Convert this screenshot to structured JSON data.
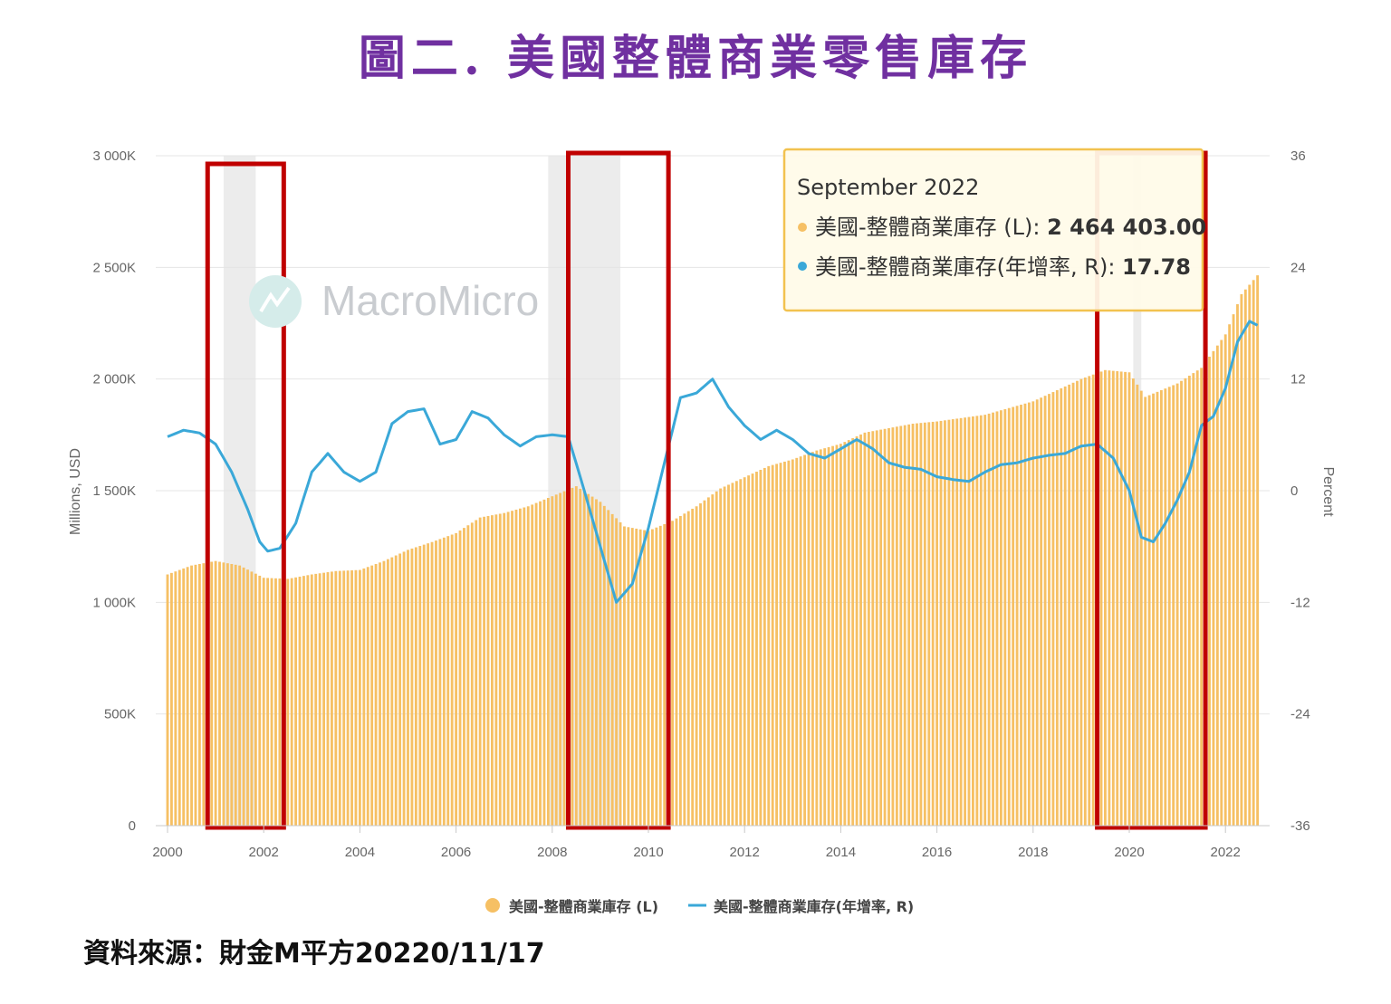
{
  "title": "圖二. 美國整體商業零售庫存",
  "source": "資料來源：財金M平方20220/11/17",
  "watermark": "MacroMicro",
  "colors": {
    "bars": "#f6c064",
    "line": "#3aa8d8",
    "recession": "#ececec",
    "highlight": "#c00000",
    "title": "#7030a0",
    "tooltip_border": "#f2c24f"
  },
  "chart_data": {
    "type": "bar+line",
    "title": "圖二. 美國整體商業零售庫存",
    "ylabel_left": "Millions, USD",
    "ylabel_right": "Percent",
    "y_left_range": [
      0,
      3000000
    ],
    "y_left_ticks": [
      "0",
      "500K",
      "1 000K",
      "1 500K",
      "2 000K",
      "2 500K",
      "3 000K"
    ],
    "y_right_range": [
      -36,
      36
    ],
    "y_right_ticks": [
      "-36",
      "-24",
      "-12",
      "0",
      "12",
      "24",
      "36"
    ],
    "x_range": [
      "2000-01",
      "2022-09"
    ],
    "x_ticks": [
      "2000",
      "2002",
      "2004",
      "2006",
      "2008",
      "2010",
      "2012",
      "2014",
      "2016",
      "2018",
      "2020",
      "2022"
    ],
    "recession_periods": [
      [
        "2001-03",
        "2001-11"
      ],
      [
        "2007-12",
        "2009-06"
      ],
      [
        "2020-02",
        "2020-04"
      ]
    ],
    "highlight_boxes": [
      [
        "2000-11",
        "2002-06"
      ],
      [
        "2008-05",
        "2010-06"
      ],
      [
        "2019-05",
        "2021-08"
      ]
    ],
    "series": [
      {
        "name": "美國-整體商業庫存 (L)",
        "type": "bar",
        "axis": "left",
        "points": [
          [
            "2000-01",
            1125000
          ],
          [
            "2000-07",
            1165000
          ],
          [
            "2001-01",
            1185000
          ],
          [
            "2001-07",
            1165000
          ],
          [
            "2002-01",
            1110000
          ],
          [
            "2002-07",
            1105000
          ],
          [
            "2003-01",
            1125000
          ],
          [
            "2003-07",
            1140000
          ],
          [
            "2004-01",
            1145000
          ],
          [
            "2004-07",
            1185000
          ],
          [
            "2005-01",
            1235000
          ],
          [
            "2005-07",
            1270000
          ],
          [
            "2006-01",
            1310000
          ],
          [
            "2006-07",
            1380000
          ],
          [
            "2007-01",
            1400000
          ],
          [
            "2007-07",
            1430000
          ],
          [
            "2008-01",
            1475000
          ],
          [
            "2008-07",
            1520000
          ],
          [
            "2009-01",
            1450000
          ],
          [
            "2009-07",
            1340000
          ],
          [
            "2010-01",
            1320000
          ],
          [
            "2010-07",
            1365000
          ],
          [
            "2011-01",
            1430000
          ],
          [
            "2011-07",
            1510000
          ],
          [
            "2012-01",
            1560000
          ],
          [
            "2012-07",
            1610000
          ],
          [
            "2013-01",
            1640000
          ],
          [
            "2013-07",
            1680000
          ],
          [
            "2014-01",
            1710000
          ],
          [
            "2014-07",
            1760000
          ],
          [
            "2015-01",
            1780000
          ],
          [
            "2015-07",
            1800000
          ],
          [
            "2016-01",
            1810000
          ],
          [
            "2016-07",
            1825000
          ],
          [
            "2017-01",
            1840000
          ],
          [
            "2017-07",
            1870000
          ],
          [
            "2018-01",
            1900000
          ],
          [
            "2018-07",
            1950000
          ],
          [
            "2019-01",
            2000000
          ],
          [
            "2019-07",
            2040000
          ],
          [
            "2020-01",
            2030000
          ],
          [
            "2020-05",
            1920000
          ],
          [
            "2020-09",
            1950000
          ],
          [
            "2021-01",
            1980000
          ],
          [
            "2021-07",
            2050000
          ],
          [
            "2022-01",
            2200000
          ],
          [
            "2022-05",
            2380000
          ],
          [
            "2022-09",
            2464403
          ]
        ]
      },
      {
        "name": "美國-整體商業庫存(年增率, R)",
        "type": "line",
        "axis": "right",
        "points": [
          [
            "2000-01",
            5.8
          ],
          [
            "2000-05",
            6.5
          ],
          [
            "2000-09",
            6.2
          ],
          [
            "2001-01",
            5.0
          ],
          [
            "2001-05",
            2.0
          ],
          [
            "2001-09",
            -2.0
          ],
          [
            "2001-12",
            -5.5
          ],
          [
            "2002-02",
            -6.5
          ],
          [
            "2002-05",
            -6.2
          ],
          [
            "2002-09",
            -3.5
          ],
          [
            "2003-01",
            2.0
          ],
          [
            "2003-05",
            4.0
          ],
          [
            "2003-09",
            2.0
          ],
          [
            "2004-01",
            1.0
          ],
          [
            "2004-05",
            2.0
          ],
          [
            "2004-09",
            7.2
          ],
          [
            "2005-01",
            8.5
          ],
          [
            "2005-05",
            8.8
          ],
          [
            "2005-09",
            5.0
          ],
          [
            "2006-01",
            5.5
          ],
          [
            "2006-05",
            8.5
          ],
          [
            "2006-09",
            7.8
          ],
          [
            "2007-01",
            6.0
          ],
          [
            "2007-05",
            4.8
          ],
          [
            "2007-09",
            5.8
          ],
          [
            "2008-01",
            6.0
          ],
          [
            "2008-05",
            5.8
          ],
          [
            "2008-09",
            0.0
          ],
          [
            "2009-01",
            -6.0
          ],
          [
            "2009-05",
            -12.0
          ],
          [
            "2009-09",
            -10.0
          ],
          [
            "2010-01",
            -4.0
          ],
          [
            "2010-05",
            3.0
          ],
          [
            "2010-09",
            10.0
          ],
          [
            "2011-01",
            10.5
          ],
          [
            "2011-05",
            12.0
          ],
          [
            "2011-09",
            9.0
          ],
          [
            "2012-01",
            7.0
          ],
          [
            "2012-05",
            5.5
          ],
          [
            "2012-09",
            6.5
          ],
          [
            "2013-01",
            5.5
          ],
          [
            "2013-05",
            4.0
          ],
          [
            "2013-09",
            3.5
          ],
          [
            "2014-01",
            4.5
          ],
          [
            "2014-05",
            5.5
          ],
          [
            "2014-09",
            4.5
          ],
          [
            "2015-01",
            3.0
          ],
          [
            "2015-05",
            2.5
          ],
          [
            "2015-09",
            2.3
          ],
          [
            "2016-01",
            1.5
          ],
          [
            "2016-05",
            1.2
          ],
          [
            "2016-09",
            1.0
          ],
          [
            "2017-01",
            2.0
          ],
          [
            "2017-05",
            2.8
          ],
          [
            "2017-09",
            3.0
          ],
          [
            "2018-01",
            3.5
          ],
          [
            "2018-05",
            3.8
          ],
          [
            "2018-09",
            4.0
          ],
          [
            "2019-01",
            4.8
          ],
          [
            "2019-05",
            5.0
          ],
          [
            "2019-09",
            3.5
          ],
          [
            "2020-01",
            0.0
          ],
          [
            "2020-04",
            -5.0
          ],
          [
            "2020-07",
            -5.5
          ],
          [
            "2020-10",
            -3.5
          ],
          [
            "2021-01",
            -1.0
          ],
          [
            "2021-04",
            2.0
          ],
          [
            "2021-07",
            7.0
          ],
          [
            "2021-10",
            8.0
          ],
          [
            "2022-01",
            11.0
          ],
          [
            "2022-04",
            16.0
          ],
          [
            "2022-07",
            18.2
          ],
          [
            "2022-09",
            17.78
          ]
        ]
      }
    ],
    "legend": {
      "position": "bottom"
    },
    "grid": true,
    "tooltip": {
      "label": "September 2022",
      "rows": [
        {
          "series": "美國-整體商業庫存 (L)",
          "value": "2 464 403.00"
        },
        {
          "series": "美國-整體商業庫存(年增率, R)",
          "value": "17.78"
        }
      ]
    }
  }
}
